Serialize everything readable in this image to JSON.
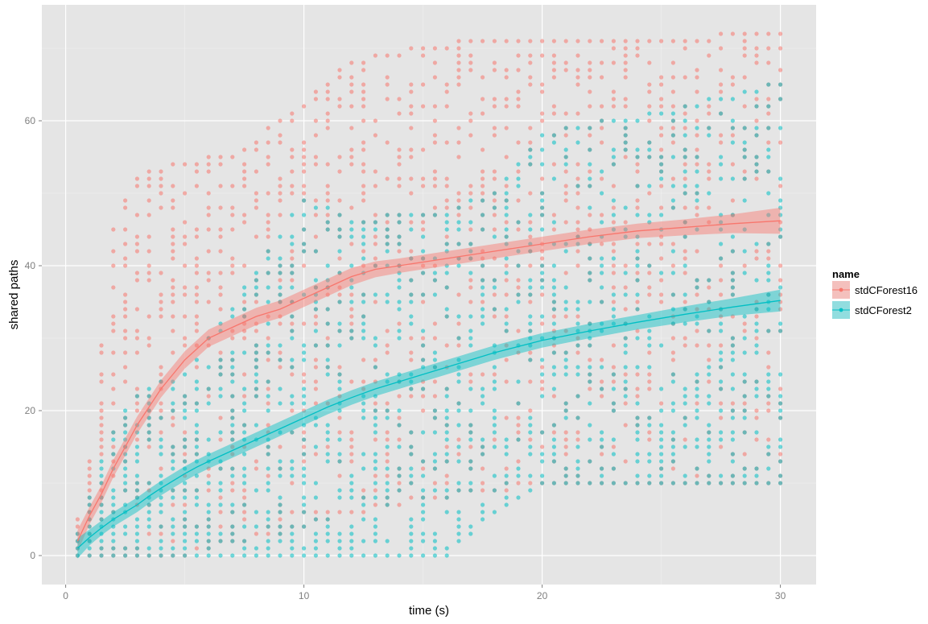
{
  "chart_data": {
    "type": "scatter",
    "title": "",
    "xlabel": "time (s)",
    "ylabel": "shared paths",
    "xlim": [
      -1.0,
      31.5
    ],
    "ylim": [
      -4.0,
      76.0
    ],
    "x_ticks": [
      0,
      10,
      20,
      30
    ],
    "y_ticks": [
      0,
      20,
      40,
      60
    ],
    "grid": true,
    "background": "#e5e5e5",
    "legend": {
      "title": "name",
      "position": "right",
      "entries": [
        "stdCForest16",
        "stdCForest2"
      ]
    },
    "series": [
      {
        "name": "stdCForest16",
        "color": "#f8766d",
        "x_range": [
          0.5,
          30
        ],
        "points_per_x": 28,
        "point_range_by_x": [
          {
            "x": 0.5,
            "min": 0,
            "max": 5
          },
          {
            "x": 1,
            "min": 0,
            "max": 13
          },
          {
            "x": 2,
            "min": 0,
            "max": 45
          },
          {
            "x": 3,
            "min": 0,
            "max": 52
          },
          {
            "x": 5,
            "min": 0,
            "max": 54
          },
          {
            "x": 7,
            "min": 2,
            "max": 55
          },
          {
            "x": 10,
            "min": 4,
            "max": 62
          },
          {
            "x": 12,
            "min": 6,
            "max": 68
          },
          {
            "x": 15,
            "min": 8,
            "max": 70
          },
          {
            "x": 18,
            "min": 9,
            "max": 71
          },
          {
            "x": 20,
            "min": 10,
            "max": 71
          },
          {
            "x": 25,
            "min": 10,
            "max": 71
          },
          {
            "x": 30,
            "min": 10,
            "max": 72
          }
        ],
        "smooth": {
          "x": [
            0.5,
            1,
            1.5,
            2,
            2.5,
            3,
            3.5,
            4,
            4.5,
            5,
            5.5,
            6,
            7,
            8,
            9,
            10,
            11,
            12,
            13,
            14,
            16,
            18,
            20,
            22,
            24,
            26,
            28,
            30
          ],
          "y": [
            2,
            5.5,
            8.5,
            12,
            15,
            18,
            20.5,
            23,
            25,
            27,
            28.5,
            30,
            31.5,
            33,
            34,
            35.5,
            37,
            38.5,
            39.5,
            40,
            41,
            42,
            43,
            44,
            44.8,
            45.3,
            45.8,
            46.2
          ],
          "ci_halfwidth": [
            1.5,
            1.2,
            1.2,
            1.2,
            1.2,
            1.2,
            1.2,
            1.2,
            1.2,
            1.2,
            1.2,
            1.2,
            1.2,
            1.2,
            1.2,
            1.2,
            1.2,
            1.2,
            1.1,
            1.0,
            1.0,
            1.0,
            1.0,
            1.0,
            1.0,
            1.1,
            1.3,
            1.8
          ]
        }
      },
      {
        "name": "stdCForest2",
        "color": "#00bfc4",
        "x_range": [
          0.5,
          30
        ],
        "points_per_x": 28,
        "point_range_by_x": [
          {
            "x": 0.5,
            "min": 0,
            "max": 3
          },
          {
            "x": 1,
            "min": 0,
            "max": 8
          },
          {
            "x": 2,
            "min": 0,
            "max": 17
          },
          {
            "x": 3,
            "min": 0,
            "max": 22
          },
          {
            "x": 5,
            "min": 0,
            "max": 25
          },
          {
            "x": 7,
            "min": 0,
            "max": 34
          },
          {
            "x": 10,
            "min": 0,
            "max": 49
          },
          {
            "x": 12,
            "min": 0,
            "max": 46
          },
          {
            "x": 15,
            "min": 0,
            "max": 47
          },
          {
            "x": 16,
            "min": 0,
            "max": 47
          },
          {
            "x": 18,
            "min": 6,
            "max": 50
          },
          {
            "x": 20,
            "min": 10,
            "max": 58
          },
          {
            "x": 25,
            "min": 10,
            "max": 61
          },
          {
            "x": 30,
            "min": 10,
            "max": 65
          }
        ],
        "smooth": {
          "x": [
            0.5,
            1,
            1.5,
            2,
            2.5,
            3,
            3.5,
            4,
            4.5,
            5,
            5.5,
            6,
            7,
            8,
            9,
            10,
            11,
            12,
            13,
            14,
            16,
            18,
            20,
            22,
            24,
            26,
            28,
            30
          ],
          "y": [
            1,
            2.5,
            3.8,
            5,
            6,
            7,
            8.2,
            9.3,
            10.3,
            11.3,
            12.2,
            13,
            14.5,
            16,
            17.5,
            19,
            20.5,
            21.8,
            23,
            24,
            26,
            28,
            29.7,
            31,
            32.2,
            33.3,
            34.3,
            35.2
          ],
          "ci_halfwidth": [
            1.4,
            1.1,
            1.0,
            1.0,
            1.0,
            1.0,
            1.0,
            1.0,
            1.0,
            1.0,
            1.0,
            1.0,
            1.0,
            1.0,
            1.0,
            1.0,
            1.0,
            1.0,
            1.0,
            1.0,
            1.0,
            1.0,
            1.0,
            1.0,
            1.0,
            1.1,
            1.2,
            1.5
          ]
        }
      }
    ]
  }
}
